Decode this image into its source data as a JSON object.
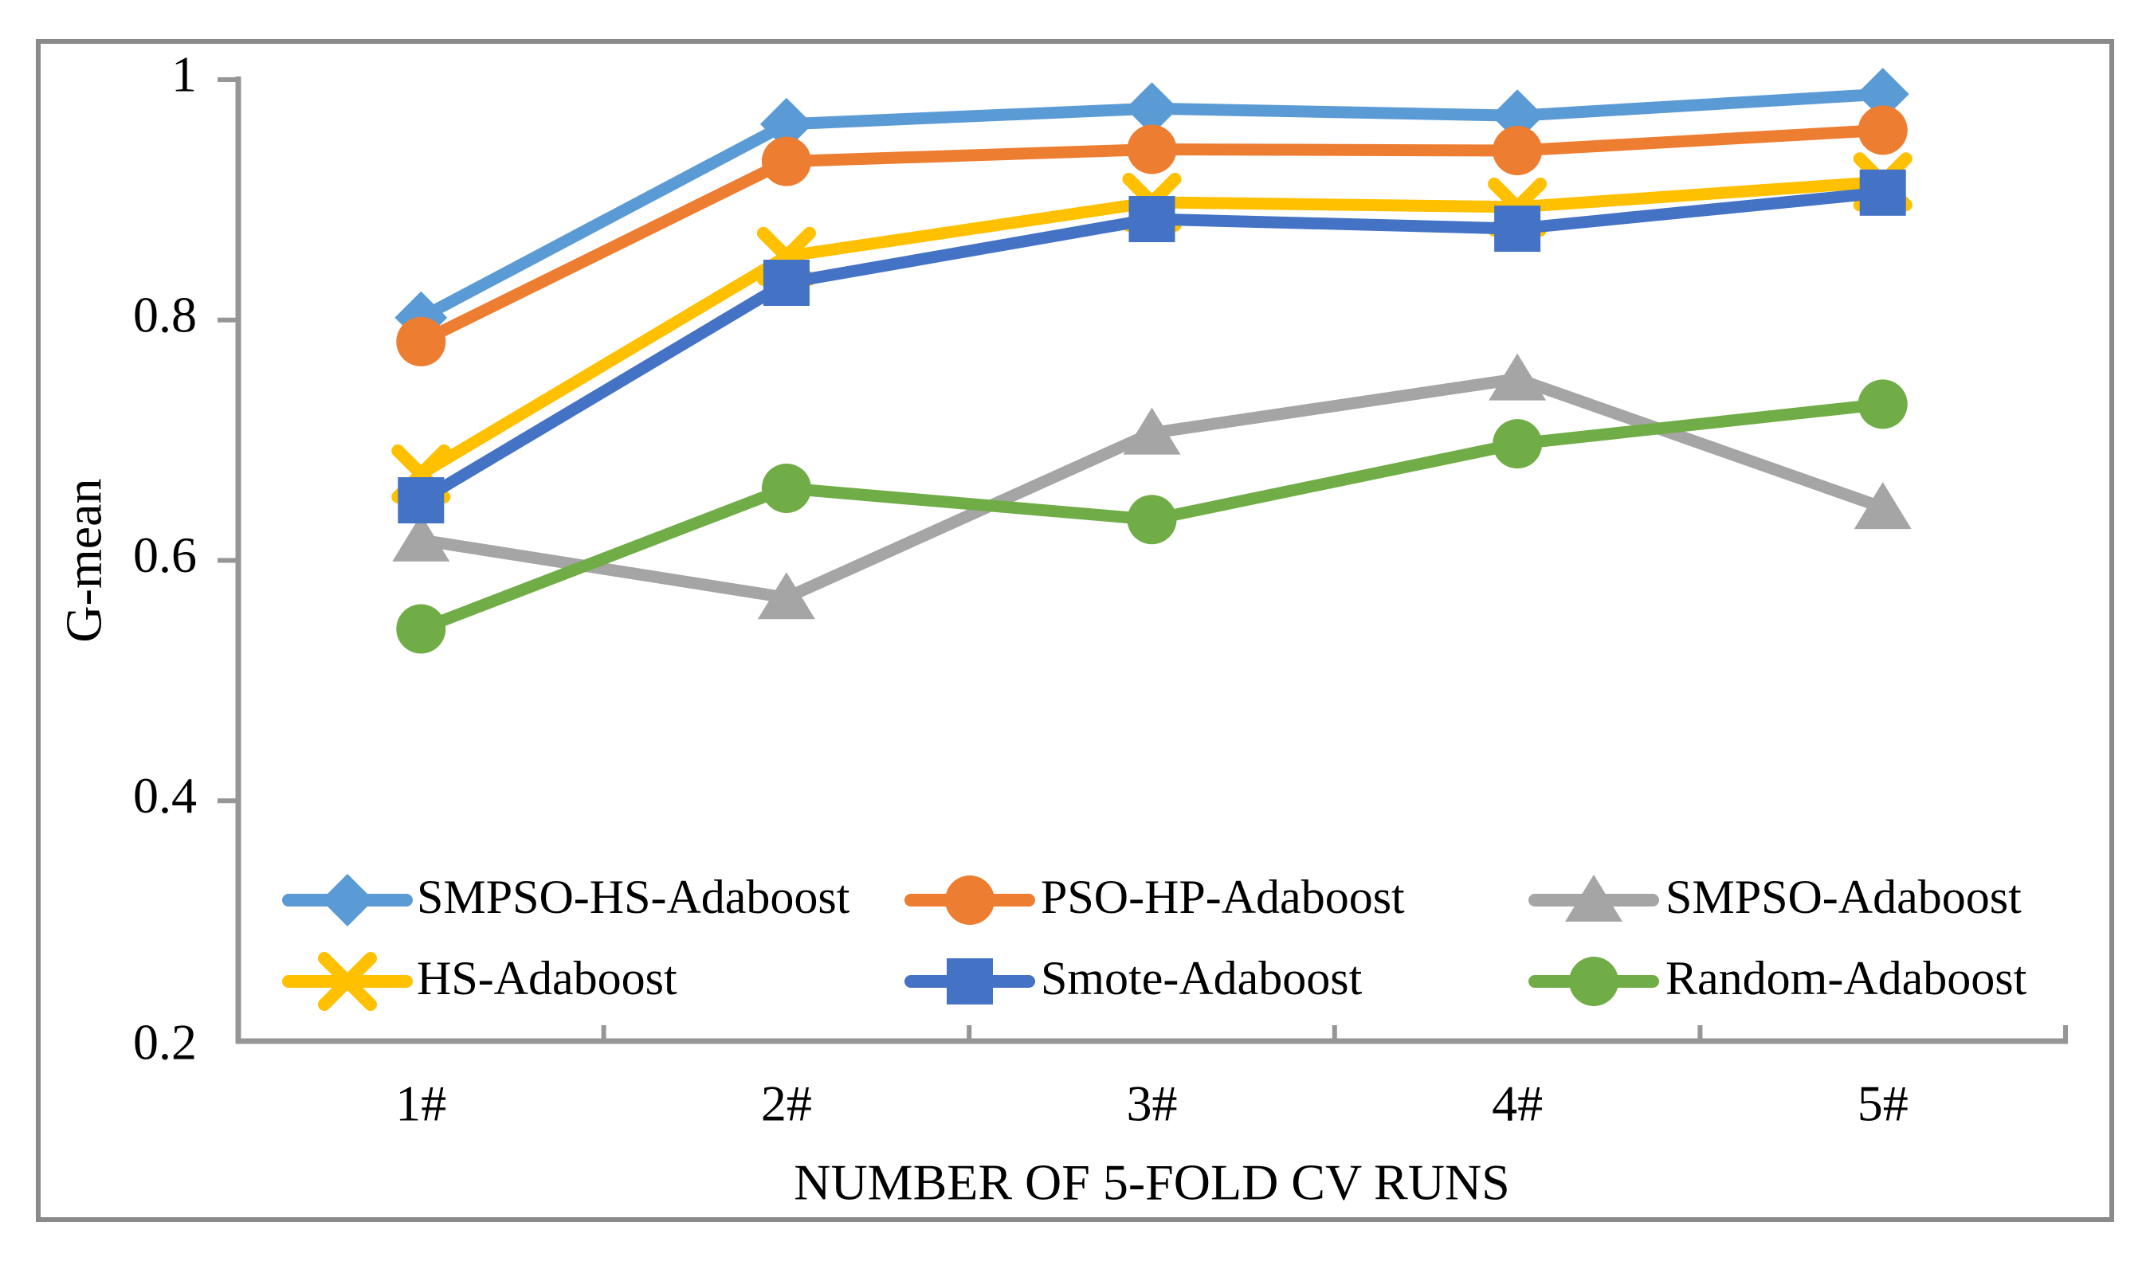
{
  "figure": {
    "background": "#ffffff",
    "border_color": "#8a8a8a",
    "axis_color": "#969696",
    "text_color": "#000000"
  },
  "chart_data": {
    "type": "line",
    "title": "",
    "xlabel": "NUMBER OF 5-FOLD CV RUNS",
    "ylabel": "G-mean",
    "categories": [
      "1#",
      "2#",
      "3#",
      "4#",
      "5#"
    ],
    "ylim": [
      0.2,
      1.0
    ],
    "ytick_values": [
      1,
      0.8,
      0.6,
      0.4,
      0.2
    ],
    "ytick_labels": [
      "1",
      "0.8",
      "0.6",
      "0.4",
      "0.2"
    ],
    "grid": false,
    "legend_position": "inside-bottom",
    "series": [
      {
        "name": "SMPSO-HS-Adaboost",
        "marker": "diamond",
        "color": "#5B9BD5",
        "values": [
          0.802,
          0.963,
          0.976,
          0.97,
          0.988
        ]
      },
      {
        "name": "PSO-HP-Adaboost",
        "marker": "circle",
        "color": "#ED7D31",
        "values": [
          0.782,
          0.932,
          0.942,
          0.941,
          0.958
        ]
      },
      {
        "name": "SMPSO-Adaboost",
        "marker": "triangle-up",
        "color": "#A5A5A5",
        "values": [
          0.617,
          0.569,
          0.706,
          0.751,
          0.644
        ]
      },
      {
        "name": "HS-Adaboost",
        "marker": "x-cross",
        "color": "#FFC000",
        "values": [
          0.672,
          0.853,
          0.898,
          0.894,
          0.915
        ]
      },
      {
        "name": "Smote-Adaboost",
        "marker": "square",
        "color": "#4472C4",
        "values": [
          0.65,
          0.831,
          0.884,
          0.876,
          0.906
        ]
      },
      {
        "name": "Random-Adaboost",
        "marker": "circle",
        "color": "#70AD47",
        "values": [
          0.543,
          0.66,
          0.634,
          0.697,
          0.73
        ]
      }
    ],
    "legend_rows": [
      [
        "SMPSO-HS-Adaboost",
        "PSO-HP-Adaboost",
        "SMPSO-Adaboost"
      ],
      [
        "HS-Adaboost",
        "Smote-Adaboost",
        "Random-Adaboost"
      ]
    ]
  }
}
